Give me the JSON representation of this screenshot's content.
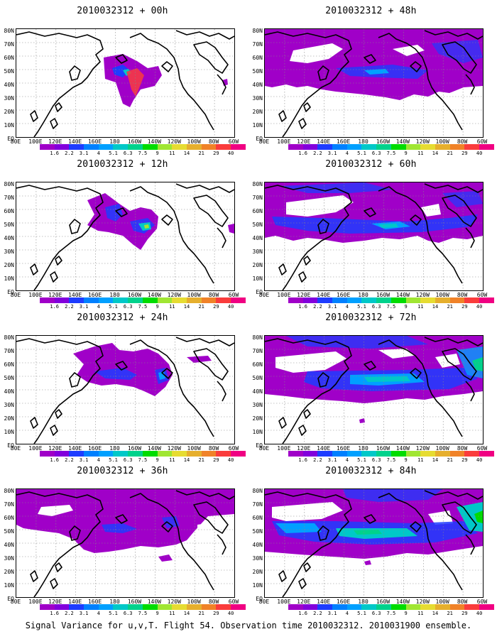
{
  "caption": "Signal Variance for u,v,T. Flight 54. Observation time 2010032312. 2010031900 ensemble.",
  "panels": [
    {
      "title": "2010032312 + 00h"
    },
    {
      "title": "2010032312 + 48h"
    },
    {
      "title": "2010032312 + 12h"
    },
    {
      "title": "2010032312 + 60h"
    },
    {
      "title": "2010032312 + 24h"
    },
    {
      "title": "2010032312 + 72h"
    },
    {
      "title": "2010032312 + 36h"
    },
    {
      "title": "2010032312 + 84h"
    }
  ],
  "lat_labels": [
    "80N",
    "70N",
    "60N",
    "50N",
    "40N",
    "30N",
    "20N",
    "10N",
    "EQ"
  ],
  "lon_labels": [
    "80E",
    "100E",
    "120E",
    "140E",
    "160E",
    "180",
    "160W",
    "140W",
    "120W",
    "100W",
    "80W",
    "60W"
  ],
  "colorbar": {
    "labels": [
      "1.6",
      "2.2",
      "3.1",
      "4",
      "5.1",
      "6.3",
      "7.5",
      "9",
      "11",
      "14",
      "21",
      "29",
      "40"
    ],
    "colors": [
      "#a000c8",
      "#8200dc",
      "#1e3cff",
      "#0080ff",
      "#00a0ff",
      "#00c8c8",
      "#00d28c",
      "#00dc00",
      "#a0e632",
      "#e6dc32",
      "#e6af2d",
      "#f08228",
      "#fa3c3c",
      "#f00082"
    ]
  }
}
